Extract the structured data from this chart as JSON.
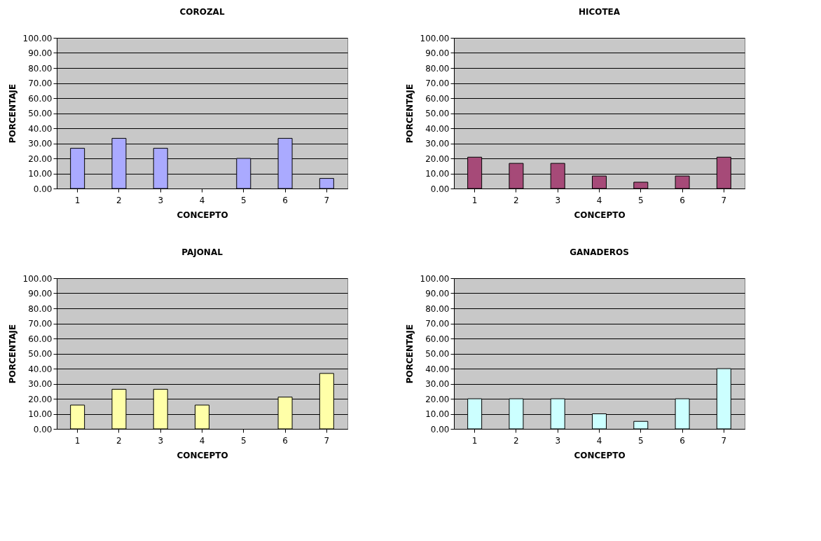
{
  "chart_data": [
    {
      "type": "bar",
      "title": "COROZAL",
      "xlabel": "CONCEPTO",
      "ylabel": "PORCENTAJE",
      "categories": [
        "1",
        "2",
        "3",
        "4",
        "5",
        "6",
        "7"
      ],
      "values": [
        26.7,
        33.3,
        26.7,
        0,
        20.0,
        33.3,
        6.7
      ],
      "color": "#aaaaff",
      "ylim": [
        0,
        100
      ],
      "yticks": [
        {
          "value": 0,
          "label": "0.00"
        },
        {
          "value": 10,
          "label": "10.00"
        },
        {
          "value": 20,
          "label": "20.00"
        },
        {
          "value": 30,
          "label": "30.00"
        },
        {
          "value": 40,
          "label": "40.00"
        },
        {
          "value": 50,
          "label": "50.00"
        },
        {
          "value": 60,
          "label": "60.00"
        },
        {
          "value": 70,
          "label": "70.00"
        },
        {
          "value": 80,
          "label": "80.00"
        },
        {
          "value": 90,
          "label": "90.00"
        },
        {
          "value": 100,
          "label": "100.00"
        }
      ],
      "grid": "y"
    },
    {
      "type": "bar",
      "title": "HICOTEA",
      "xlabel": "CONCEPTO",
      "ylabel": "PORCENTAJE",
      "categories": [
        "1",
        "2",
        "3",
        "4",
        "5",
        "6",
        "7"
      ],
      "values": [
        20.8,
        16.7,
        16.7,
        8.3,
        4.2,
        8.3,
        20.8
      ],
      "color": "#a64a78",
      "ylim": [
        0,
        100
      ],
      "yticks": [
        {
          "value": 0,
          "label": "0.00"
        },
        {
          "value": 10,
          "label": "10.00"
        },
        {
          "value": 20,
          "label": "20.00"
        },
        {
          "value": 30,
          "label": "30.00"
        },
        {
          "value": 40,
          "label": "40.00"
        },
        {
          "value": 50,
          "label": "50.00"
        },
        {
          "value": 60,
          "label": "60.00"
        },
        {
          "value": 70,
          "label": "70.00"
        },
        {
          "value": 80,
          "label": "80.00"
        },
        {
          "value": 90,
          "label": "90.00"
        },
        {
          "value": 100,
          "label": "100.00"
        }
      ],
      "grid": "y"
    },
    {
      "type": "bar",
      "title": "PAJONAL",
      "xlabel": "CONCEPTO",
      "ylabel": "PORCENTAJE",
      "categories": [
        "1",
        "2",
        "3",
        "4",
        "5",
        "6",
        "7"
      ],
      "values": [
        15.8,
        26.3,
        26.3,
        15.8,
        0,
        21.1,
        36.8
      ],
      "color": "#ffffa8",
      "ylim": [
        0,
        100
      ],
      "yticks": [
        {
          "value": 0,
          "label": "0.00"
        },
        {
          "value": 10,
          "label": "10.00"
        },
        {
          "value": 20,
          "label": "20.00"
        },
        {
          "value": 30,
          "label": "30.00"
        },
        {
          "value": 40,
          "label": "40.00"
        },
        {
          "value": 50,
          "label": "50.00"
        },
        {
          "value": 60,
          "label": "60.00"
        },
        {
          "value": 70,
          "label": "70.00"
        },
        {
          "value": 80,
          "label": "80.00"
        },
        {
          "value": 90,
          "label": "90.00"
        },
        {
          "value": 100,
          "label": "100.00"
        }
      ],
      "grid": "y"
    },
    {
      "type": "bar",
      "title": "GANADEROS",
      "xlabel": "CONCEPTO",
      "ylabel": "PORCENTAJE",
      "categories": [
        "1",
        "2",
        "3",
        "4",
        "5",
        "6",
        "7"
      ],
      "values": [
        20,
        20,
        20,
        10,
        5,
        20,
        40
      ],
      "color": "#ccffff",
      "ylim": [
        0,
        100
      ],
      "yticks": [
        {
          "value": 0,
          "label": "0.00"
        },
        {
          "value": 10,
          "label": "10.00"
        },
        {
          "value": 20,
          "label": "20.00"
        },
        {
          "value": 30,
          "label": "30.00"
        },
        {
          "value": 40,
          "label": "40.00"
        },
        {
          "value": 50,
          "label": "50.00"
        },
        {
          "value": 60,
          "label": "60.00"
        },
        {
          "value": 70,
          "label": "70.00"
        },
        {
          "value": 80,
          "label": "80.00"
        },
        {
          "value": 90,
          "label": "90.00"
        },
        {
          "value": 100,
          "label": "100.00"
        }
      ],
      "grid": "y"
    }
  ]
}
